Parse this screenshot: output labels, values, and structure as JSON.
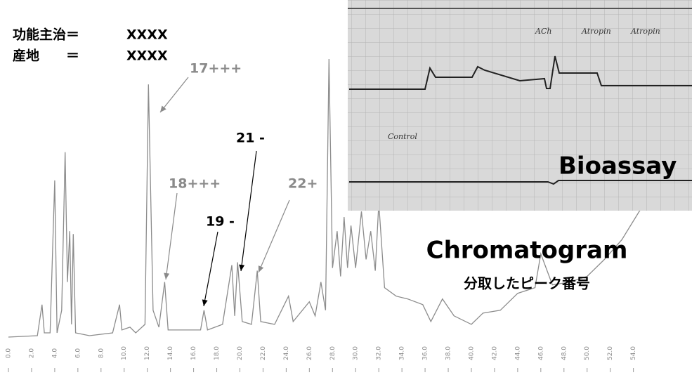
{
  "chart_data": {
    "type": "line",
    "title": "Chromatogram",
    "subtitle": "分取したピーク番号",
    "info": [
      {
        "label": "功能主治＝",
        "value": "XXXX"
      },
      {
        "label": "産地　　＝",
        "value": "XXXX"
      }
    ],
    "annotations": [
      {
        "text": "17+++",
        "color": "#8a8a8a"
      },
      {
        "text": "18+++",
        "color": "#8a8a8a"
      },
      {
        "text": "19 -",
        "color": "#000000"
      },
      {
        "text": "21 -",
        "color": "#000000"
      },
      {
        "text": "22+",
        "color": "#8a8a8a"
      }
    ],
    "x": [
      0,
      2.5,
      2.9,
      3.1,
      3.6,
      4.0,
      4.2,
      4.6,
      4.9,
      5.1,
      5.3,
      5.45,
      5.6,
      5.8,
      7,
      9,
      9.6,
      9.8,
      10.5,
      11,
      11.8,
      12.1,
      12.5,
      13,
      13.5,
      13.8,
      15,
      16.6,
      16.9,
      17.2,
      18.5,
      19.3,
      19.55,
      19.8,
      20.2,
      21,
      21.5,
      21.8,
      23,
      24.2,
      24.6,
      26,
      26.5,
      27,
      27.4,
      27.7,
      28,
      28.4,
      28.7,
      29,
      29.3,
      29.6,
      30,
      30.5,
      30.9,
      31.3,
      31.7,
      32,
      32.5,
      33.5,
      34.5,
      35.8,
      36.5,
      37.5,
      38.5,
      40,
      41,
      42.5,
      44,
      45.5,
      46,
      47,
      48.5,
      50,
      51.5,
      53,
      54.5,
      55
    ],
    "series": [
      {
        "color": "#8c8c8c",
        "values": [
          0.5,
          1,
          12,
          2,
          2,
          56,
          2,
          10,
          66,
          20,
          38,
          5,
          37,
          2,
          1,
          2,
          12,
          3,
          4,
          2,
          5,
          90,
          10,
          4,
          20,
          3,
          3,
          3,
          10,
          3,
          5,
          26,
          8,
          27,
          6,
          5,
          24,
          6,
          5,
          15,
          6,
          13,
          8,
          20,
          10,
          99,
          25,
          38,
          22,
          43,
          25,
          40,
          25,
          45,
          28,
          38,
          24,
          48,
          18,
          15,
          14,
          12,
          6,
          14,
          8,
          5,
          9,
          10,
          16,
          18,
          30,
          19,
          20,
          22,
          28,
          35,
          45,
          48
        ]
      }
    ],
    "xlim": [
      0,
      59
    ],
    "ylim": [
      0,
      100
    ],
    "xticks": [
      {
        "value": 0,
        "label": "0.0"
      },
      {
        "value": 2,
        "label": "2.0"
      },
      {
        "value": 4,
        "label": "4.0"
      },
      {
        "value": 6,
        "label": "6.0"
      },
      {
        "value": 8,
        "label": "8.0"
      },
      {
        "value": 10,
        "label": "10.0"
      },
      {
        "value": 12,
        "label": "12.0"
      },
      {
        "value": 14,
        "label": "14.0"
      },
      {
        "value": 16,
        "label": "16.0"
      },
      {
        "value": 18,
        "label": "18.0"
      },
      {
        "value": 20,
        "label": "20.0"
      },
      {
        "value": 22,
        "label": "22.0"
      },
      {
        "value": 24,
        "label": "24.0"
      },
      {
        "value": 26,
        "label": "26.0"
      },
      {
        "value": 28,
        "label": "28.0"
      },
      {
        "value": 30,
        "label": "30.0"
      },
      {
        "value": 32,
        "label": "32.0"
      },
      {
        "value": 34,
        "label": "34.0"
      },
      {
        "value": 36,
        "label": "36.0"
      },
      {
        "value": 38,
        "label": "38.0"
      },
      {
        "value": 40,
        "label": "40.0"
      },
      {
        "value": 42,
        "label": "42.0"
      },
      {
        "value": 44,
        "label": "44.0"
      },
      {
        "value": 46,
        "label": "46.0"
      },
      {
        "value": 48,
        "label": "48.0"
      },
      {
        "value": 50,
        "label": "50.0"
      },
      {
        "value": 52,
        "label": "52.0"
      },
      {
        "value": 54,
        "label": "54.0"
      }
    ]
  },
  "inset": {
    "title": "Bioassay",
    "labels": [
      "Control",
      "ACh",
      "Atropin",
      "Atropin"
    ]
  }
}
